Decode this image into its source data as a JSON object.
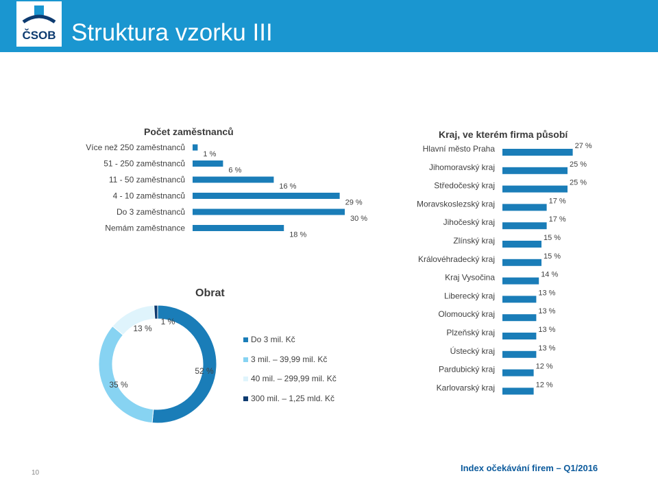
{
  "title": "Struktura vzorku III",
  "logo_text": "ČSOB",
  "footer": "Index očekávání firem – Q1/2016",
  "page_number": "10",
  "colors": {
    "brand": "#1a96d0",
    "bar": "#1a7db8",
    "dark": "#0d3b70"
  },
  "chart_data": [
    {
      "type": "bar",
      "orientation": "horizontal",
      "title": "Počet zaměstnanců",
      "categories": [
        "Více než 250 zaměstnanců",
        "51 - 250 zaměstnanců",
        "11 - 50 zaměstnanců",
        "4 - 10 zaměstnanců",
        "Do 3 zaměstnanců",
        "Nemám zaměstnance"
      ],
      "values": [
        1,
        6,
        16,
        29,
        30,
        18
      ],
      "labels": [
        "1 %",
        "6 %",
        "16 %",
        "29 %",
        "30 %",
        "18 %"
      ]
    },
    {
      "type": "bar",
      "orientation": "horizontal",
      "title": "Kraj, ve kterém firma působí",
      "categories": [
        "Hlavní město Praha",
        "Jihomoravský kraj",
        "Středočeský kraj",
        "Moravskoslezský kraj",
        "Jihočeský kraj",
        "Zlínský kraj",
        "Královéhradecký kraj",
        "Kraj Vysočina",
        "Liberecký kraj",
        "Olomoucký kraj",
        "Plzeňský kraj",
        "Ústecký kraj",
        "Pardubický kraj",
        "Karlovarský kraj"
      ],
      "values": [
        27,
        25,
        25,
        17,
        17,
        15,
        15,
        14,
        13,
        13,
        13,
        13,
        12,
        12
      ],
      "labels": [
        "27 %",
        "25 %",
        "25 %",
        "17 %",
        "17 %",
        "15 %",
        "15 %",
        "14 %",
        "13 %",
        "13 %",
        "13 %",
        "13 %",
        "12 %",
        "12 %"
      ]
    },
    {
      "type": "pie",
      "style": "donut",
      "title": "Obrat",
      "categories": [
        "Do 3 mil. Kč",
        "3 mil. – 39,99 mil. Kč",
        "40 mil. – 299,99 mil. Kč",
        "300 mil. – 1,25 mld. Kč"
      ],
      "values": [
        52,
        35,
        13,
        1
      ],
      "labels": [
        "52 %",
        "35 %",
        "13 %",
        "1 %"
      ],
      "colors": [
        "#1a7db8",
        "#87d3f2",
        "#dff4fc",
        "#0d3b70"
      ]
    }
  ]
}
